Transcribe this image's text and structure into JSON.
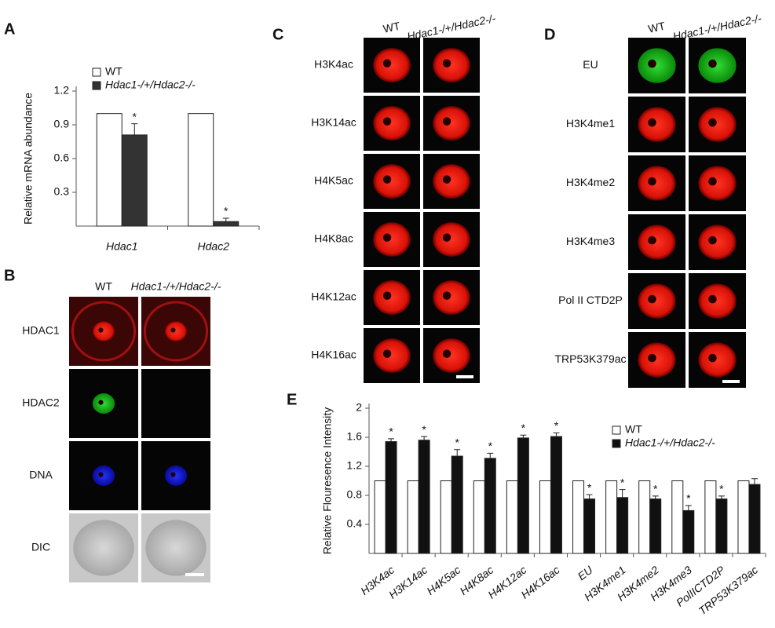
{
  "chart_data": [
    {
      "type": "bar",
      "panel": "A",
      "ylabel": "Relative mRNA abundance",
      "categories": [
        "Hdac1",
        "Hdac2"
      ],
      "ylim": [
        0,
        1.2
      ],
      "yticks": [
        0.3,
        0.6,
        0.9,
        1.2
      ],
      "legend": "top-left",
      "series": [
        {
          "name": "WT",
          "color": "#ffffff",
          "values": [
            1,
            1
          ]
        },
        {
          "name": "Hdac1-/+/Hdac2-/-",
          "color": "#333333",
          "values": [
            0.81,
            0.04
          ],
          "errors": [
            0.1,
            0.03
          ],
          "significance": [
            "*",
            "*"
          ]
        }
      ]
    },
    {
      "type": "bar",
      "panel": "E",
      "ylabel": "Relative Flouresence Intensity",
      "categories": [
        "H3K4ac",
        "H3K14ac",
        "H4K5ac",
        "H4K8ac",
        "H4K12ac",
        "H4K16ac",
        "EU",
        "H3K4me1",
        "H3K4me2",
        "H3K4me3",
        "PolIICTD2P",
        "TRP53K379ac"
      ],
      "ylim": [
        0,
        2
      ],
      "yticks": [
        0.4,
        0.8,
        1.2,
        1.6,
        2
      ],
      "legend": "top-right",
      "series": [
        {
          "name": "WT",
          "color": "#ffffff",
          "values": [
            1,
            1,
            1,
            1,
            1,
            1,
            1,
            1,
            1,
            1,
            1,
            1
          ]
        },
        {
          "name": "Hdac1-/+/Hdac2-/-",
          "color": "#111111",
          "values": [
            1.54,
            1.56,
            1.34,
            1.31,
            1.59,
            1.61,
            0.75,
            0.77,
            0.75,
            0.59,
            0.75,
            0.95
          ],
          "errors": [
            0.04,
            0.05,
            0.09,
            0.07,
            0.04,
            0.05,
            0.06,
            0.11,
            0.04,
            0.07,
            0.04,
            0.08
          ],
          "significance": [
            "*",
            "*",
            "*",
            "*",
            "*",
            "*",
            "*",
            "*",
            "*",
            "*",
            "*",
            null
          ]
        }
      ]
    }
  ],
  "panels": [
    {
      "panel": "B",
      "columns": [
        "WT",
        "Hdac1-/+/Hdac2-/-"
      ],
      "rows": [
        "HDAC1",
        "HDAC2",
        "DNA",
        "DIC"
      ]
    },
    {
      "panel": "C",
      "columns": [
        "WT",
        "Hdac1-/+/Hdac2-/-"
      ],
      "rows": [
        "H3K4ac",
        "H3K14ac",
        "H4K5ac",
        "H4K8ac",
        "H4K12ac",
        "H4K16ac"
      ]
    },
    {
      "panel": "D",
      "columns": [
        "WT",
        "Hdac1-/+/Hdac2-/-"
      ],
      "rows": [
        "EU",
        "H3K4me1",
        "H3K4me2",
        "H3K4me3",
        "Pol II CTD2P",
        "TRP53K379ac"
      ]
    }
  ]
}
